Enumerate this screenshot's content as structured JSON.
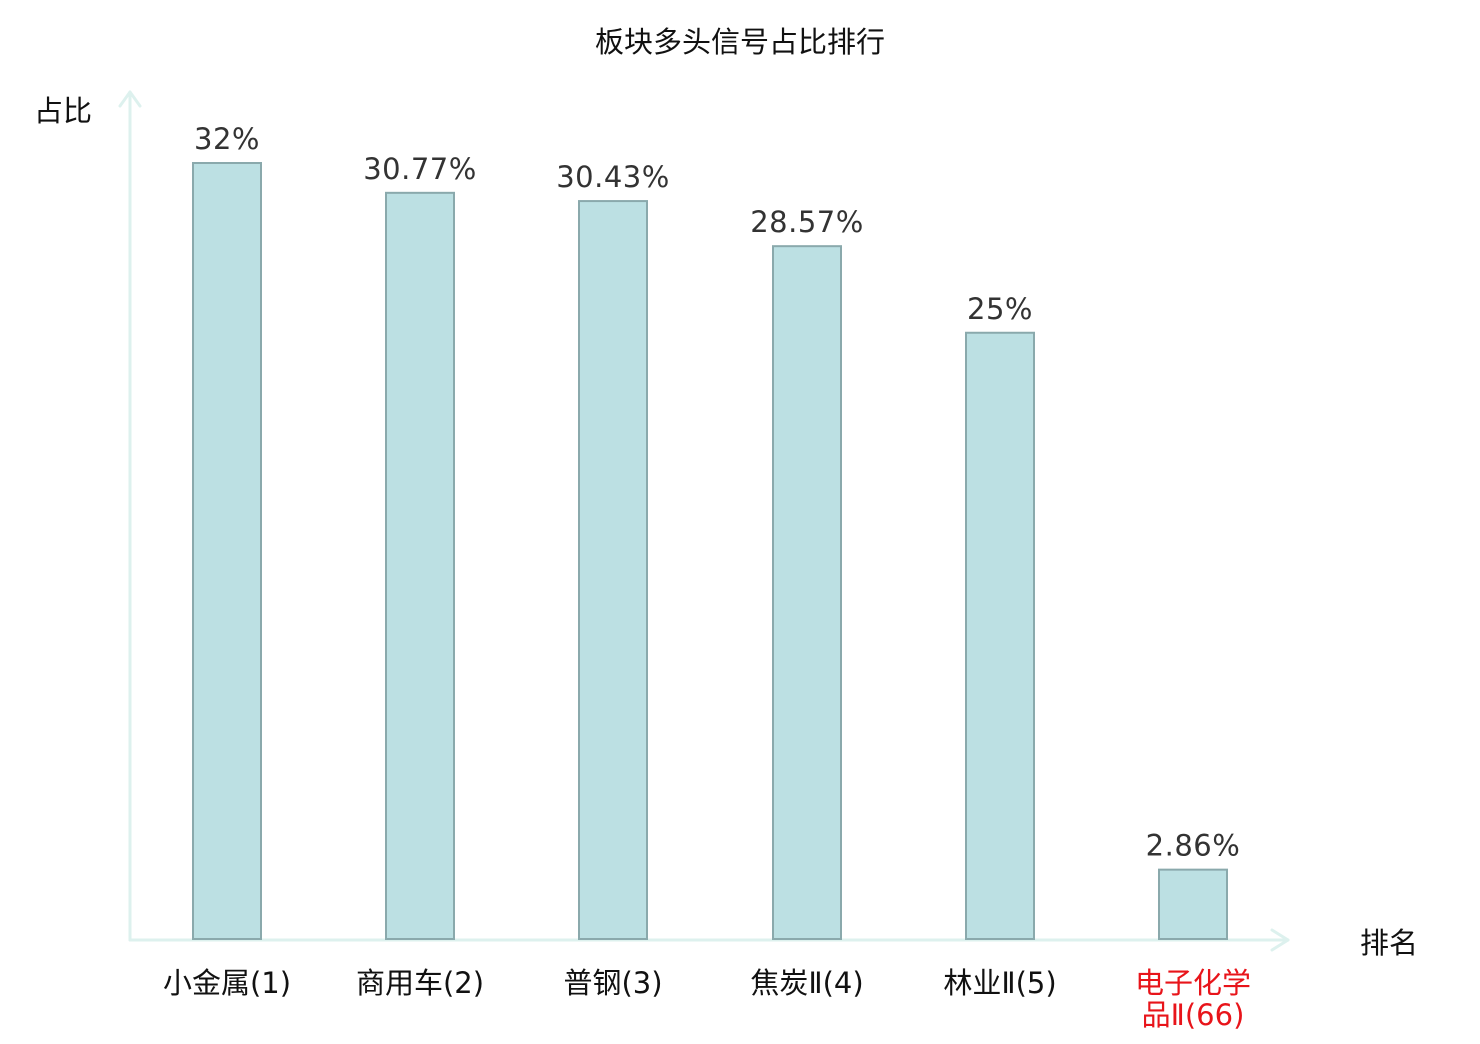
{
  "chart_data": {
    "type": "bar",
    "title": "板块多头信号占比排行",
    "ylabel": "占比",
    "xlabel": "排名",
    "categories": [
      {
        "label": "小金属(1)",
        "lines": [
          "小金属(1)"
        ],
        "highlight": false
      },
      {
        "label": "商用车(2)",
        "lines": [
          "商用车(2)"
        ],
        "highlight": false
      },
      {
        "label": "普钢(3)",
        "lines": [
          "普钢(3)"
        ],
        "highlight": false
      },
      {
        "label": "焦炭Ⅱ(4)",
        "lines": [
          "焦炭Ⅱ(4)"
        ],
        "highlight": false
      },
      {
        "label": "林业Ⅱ(5)",
        "lines": [
          "林业Ⅱ(5)"
        ],
        "highlight": false
      },
      {
        "label": "电子化学品Ⅱ(66)",
        "lines": [
          "电子化学",
          "品Ⅱ(66)"
        ],
        "highlight": true
      }
    ],
    "values": [
      32,
      30.77,
      30.43,
      28.57,
      25,
      2.86
    ],
    "value_labels": [
      "32%",
      "30.77%",
      "30.43%",
      "28.57%",
      "25%",
      "2.86%"
    ],
    "ylim": [
      0,
      35
    ],
    "grid": false,
    "legend": "none",
    "colors": {
      "bar_fill": "#bce0e3",
      "bar_stroke": "#8aa9ac",
      "axis": "#ddf1ee",
      "highlight_label": "#e8141a",
      "label": "#111111",
      "value_label": "#333333"
    }
  }
}
